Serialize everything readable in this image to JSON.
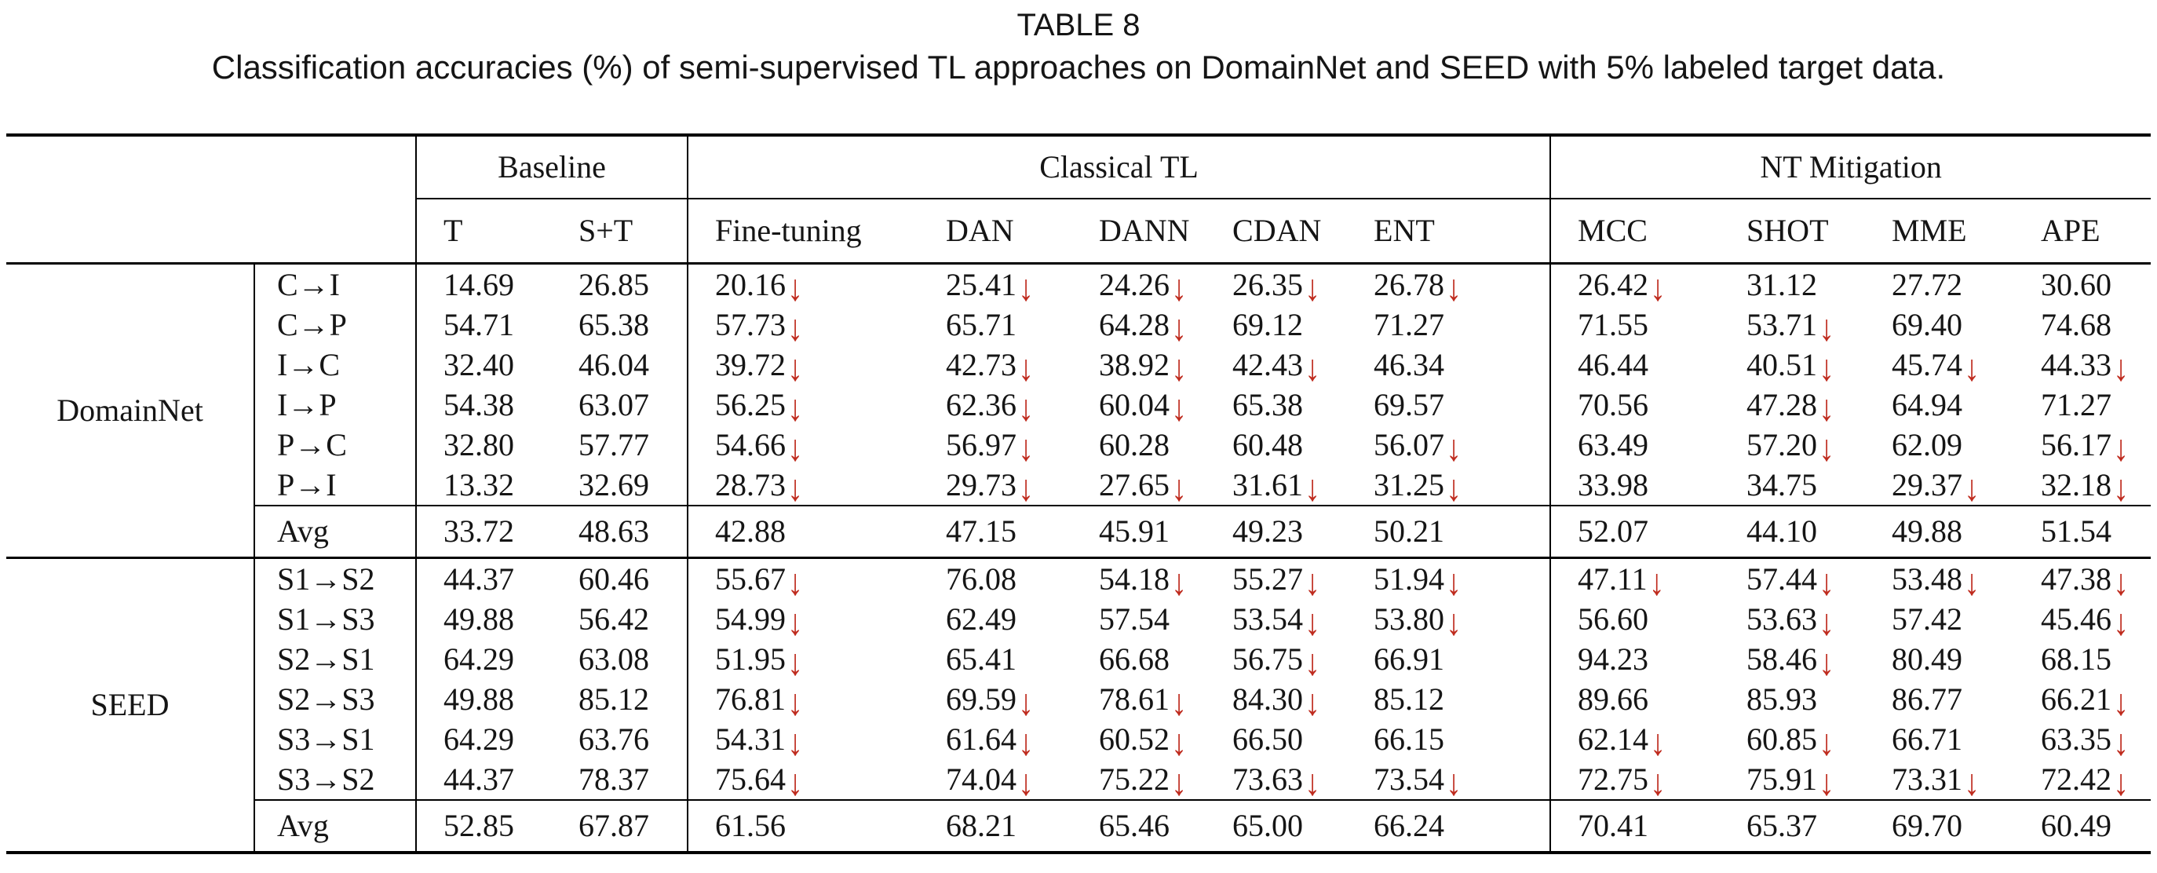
{
  "title": "TABLE 8",
  "caption": "Classification accuracies (%) of semi-supervised TL approaches on DomainNet and SEED with 5% labeled target data.",
  "colors": {
    "arrow_red": "#bf2b1e",
    "text": "#151515",
    "rule": "#000000"
  },
  "icons": {
    "negative_transfer_arrow": "↓"
  },
  "table": {
    "column_groups": [
      {
        "label": "Baseline",
        "span": 2
      },
      {
        "label": "Classical TL",
        "span": 5
      },
      {
        "label": "NT Mitigation",
        "span": 4
      }
    ],
    "columns": [
      "T",
      "S+T",
      "Fine-tuning",
      "DAN",
      "DANN",
      "CDAN",
      "ENT",
      "MCC",
      "SHOT",
      "MME",
      "APE"
    ],
    "groups": [
      {
        "name": "DomainNet",
        "rows": [
          {
            "task": "C→I",
            "values": [
              "14.69",
              "26.85",
              "20.16",
              "25.41",
              "24.26",
              "26.35",
              "26.78",
              "26.42",
              "31.12",
              "27.72",
              "30.60"
            ],
            "down": [
              0,
              0,
              1,
              1,
              1,
              1,
              1,
              1,
              0,
              0,
              0
            ]
          },
          {
            "task": "C→P",
            "values": [
              "54.71",
              "65.38",
              "57.73",
              "65.71",
              "64.28",
              "69.12",
              "71.27",
              "71.55",
              "53.71",
              "69.40",
              "74.68"
            ],
            "down": [
              0,
              0,
              1,
              0,
              1,
              0,
              0,
              0,
              1,
              0,
              0
            ]
          },
          {
            "task": "I→C",
            "values": [
              "32.40",
              "46.04",
              "39.72",
              "42.73",
              "38.92",
              "42.43",
              "46.34",
              "46.44",
              "40.51",
              "45.74",
              "44.33"
            ],
            "down": [
              0,
              0,
              1,
              1,
              1,
              1,
              0,
              0,
              1,
              1,
              1
            ]
          },
          {
            "task": "I→P",
            "values": [
              "54.38",
              "63.07",
              "56.25",
              "62.36",
              "60.04",
              "65.38",
              "69.57",
              "70.56",
              "47.28",
              "64.94",
              "71.27"
            ],
            "down": [
              0,
              0,
              1,
              1,
              1,
              0,
              0,
              0,
              1,
              0,
              0
            ]
          },
          {
            "task": "P→C",
            "values": [
              "32.80",
              "57.77",
              "54.66",
              "56.97",
              "60.28",
              "60.48",
              "56.07",
              "63.49",
              "57.20",
              "62.09",
              "56.17"
            ],
            "down": [
              0,
              0,
              1,
              1,
              0,
              0,
              1,
              0,
              1,
              0,
              1
            ]
          },
          {
            "task": "P→I",
            "values": [
              "13.32",
              "32.69",
              "28.73",
              "29.73",
              "27.65",
              "31.61",
              "31.25",
              "33.98",
              "34.75",
              "29.37",
              "32.18"
            ],
            "down": [
              0,
              0,
              1,
              1,
              1,
              1,
              1,
              0,
              0,
              1,
              1
            ]
          }
        ],
        "avg": {
          "task": "Avg",
          "values": [
            "33.72",
            "48.63",
            "42.88",
            "47.15",
            "45.91",
            "49.23",
            "50.21",
            "52.07",
            "44.10",
            "49.88",
            "51.54"
          ],
          "down": [
            0,
            0,
            0,
            0,
            0,
            0,
            0,
            0,
            0,
            0,
            0
          ]
        }
      },
      {
        "name": "SEED",
        "rows": [
          {
            "task": "S1→S2",
            "values": [
              "44.37",
              "60.46",
              "55.67",
              "76.08",
              "54.18",
              "55.27",
              "51.94",
              "47.11",
              "57.44",
              "53.48",
              "47.38"
            ],
            "down": [
              0,
              0,
              1,
              0,
              1,
              1,
              1,
              1,
              1,
              1,
              1
            ]
          },
          {
            "task": "S1→S3",
            "values": [
              "49.88",
              "56.42",
              "54.99",
              "62.49",
              "57.54",
              "53.54",
              "53.80",
              "56.60",
              "53.63",
              "57.42",
              "45.46"
            ],
            "down": [
              0,
              0,
              1,
              0,
              0,
              1,
              1,
              0,
              1,
              0,
              1
            ]
          },
          {
            "task": "S2→S1",
            "values": [
              "64.29",
              "63.08",
              "51.95",
              "65.41",
              "66.68",
              "56.75",
              "66.91",
              "94.23",
              "58.46",
              "80.49",
              "68.15"
            ],
            "down": [
              0,
              0,
              1,
              0,
              0,
              1,
              0,
              0,
              1,
              0,
              0
            ]
          },
          {
            "task": "S2→S3",
            "values": [
              "49.88",
              "85.12",
              "76.81",
              "69.59",
              "78.61",
              "84.30",
              "85.12",
              "89.66",
              "85.93",
              "86.77",
              "66.21"
            ],
            "down": [
              0,
              0,
              1,
              1,
              1,
              1,
              0,
              0,
              0,
              0,
              1
            ]
          },
          {
            "task": "S3→S1",
            "values": [
              "64.29",
              "63.76",
              "54.31",
              "61.64",
              "60.52",
              "66.50",
              "66.15",
              "62.14",
              "60.85",
              "66.71",
              "63.35"
            ],
            "down": [
              0,
              0,
              1,
              1,
              1,
              0,
              0,
              1,
              1,
              0,
              1
            ]
          },
          {
            "task": "S3→S2",
            "values": [
              "44.37",
              "78.37",
              "75.64",
              "74.04",
              "75.22",
              "73.63",
              "73.54",
              "72.75",
              "75.91",
              "73.31",
              "72.42"
            ],
            "down": [
              0,
              0,
              1,
              1,
              1,
              1,
              1,
              1,
              1,
              1,
              1
            ]
          }
        ],
        "avg": {
          "task": "Avg",
          "values": [
            "52.85",
            "67.87",
            "61.56",
            "68.21",
            "65.46",
            "65.00",
            "66.24",
            "70.41",
            "65.37",
            "69.70",
            "60.49"
          ],
          "down": [
            0,
            0,
            0,
            0,
            0,
            0,
            0,
            0,
            0,
            0,
            0
          ]
        }
      }
    ]
  }
}
